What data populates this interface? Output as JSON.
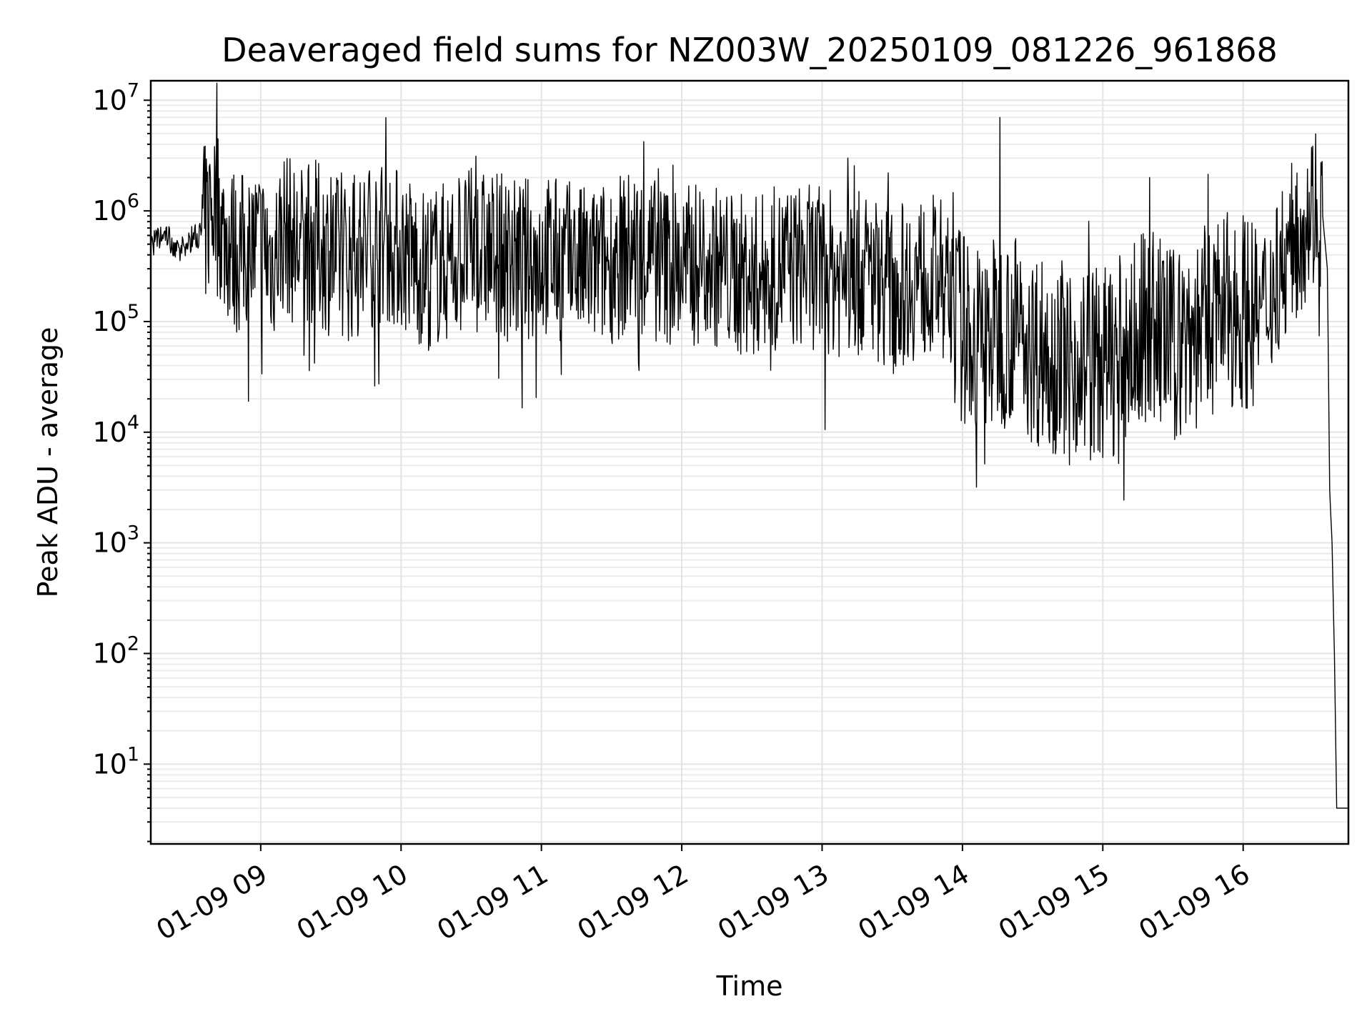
{
  "chart_data": {
    "type": "line",
    "title": "Deaveraged field sums for NZ003W_20250109_081226_961868",
    "xlabel": "Time",
    "ylabel": "Peak ADU - average",
    "yscale": "log",
    "grid": "major and minor",
    "xlim": [
      "2025-01-09 08:13",
      "2025-01-09 16:45"
    ],
    "ylim": [
      1.9,
      15000000
    ],
    "x_ticks": [
      "01-09 09",
      "01-09 10",
      "01-09 11",
      "01-09 12",
      "01-09 13",
      "01-09 14",
      "01-09 15",
      "01-09 16"
    ],
    "y_ticks": [
      {
        "base": "10",
        "exp": "1"
      },
      {
        "base": "10",
        "exp": "2"
      },
      {
        "base": "10",
        "exp": "3"
      },
      {
        "base": "10",
        "exp": "4"
      },
      {
        "base": "10",
        "exp": "5"
      },
      {
        "base": "10",
        "exp": "6"
      },
      {
        "base": "10",
        "exp": "7"
      }
    ],
    "series": [
      {
        "color": "#000000",
        "x": [
          "2025-01-09 08:13",
          "2025-01-09 08:20",
          "2025-01-09 08:25",
          "2025-01-09 08:30",
          "2025-01-09 08:35",
          "2025-01-09 08:38",
          "2025-01-09 08:41",
          "2025-01-09 08:44",
          "2025-01-09 08:47",
          "2025-01-09 08:50",
          "2025-01-09 08:55",
          "2025-01-09 09:00",
          "2025-01-09 09:05",
          "2025-01-09 09:10",
          "2025-01-09 09:15",
          "2025-01-09 09:20",
          "2025-01-09 09:25",
          "2025-01-09 09:30",
          "2025-01-09 09:40",
          "2025-01-09 09:50",
          "2025-01-09 10:00",
          "2025-01-09 10:10",
          "2025-01-09 10:20",
          "2025-01-09 10:30",
          "2025-01-09 10:40",
          "2025-01-09 10:50",
          "2025-01-09 11:00",
          "2025-01-09 11:10",
          "2025-01-09 11:20",
          "2025-01-09 11:30",
          "2025-01-09 11:40",
          "2025-01-09 11:50",
          "2025-01-09 12:00",
          "2025-01-09 12:10",
          "2025-01-09 12:20",
          "2025-01-09 12:30",
          "2025-01-09 12:40",
          "2025-01-09 12:50",
          "2025-01-09 13:00",
          "2025-01-09 13:10",
          "2025-01-09 13:20",
          "2025-01-09 13:30",
          "2025-01-09 13:40",
          "2025-01-09 13:50",
          "2025-01-09 14:00",
          "2025-01-09 14:05",
          "2025-01-09 14:10",
          "2025-01-09 14:15",
          "2025-01-09 14:20",
          "2025-01-09 14:30",
          "2025-01-09 14:40",
          "2025-01-09 14:50",
          "2025-01-09 15:00",
          "2025-01-09 15:10",
          "2025-01-09 15:20",
          "2025-01-09 15:30",
          "2025-01-09 15:40",
          "2025-01-09 15:50",
          "2025-01-09 16:00",
          "2025-01-09 16:08",
          "2025-01-09 16:15",
          "2025-01-09 16:20",
          "2025-01-09 16:25",
          "2025-01-09 16:28",
          "2025-01-09 16:31",
          "2025-01-09 16:34",
          "2025-01-09 16:36",
          "2025-01-09 16:37",
          "2025-01-09 16:38",
          "2025-01-09 16:39",
          "2025-01-09 16:40",
          "2025-01-09 16:45"
        ],
        "y": [
          500000,
          600000,
          400000,
          550000,
          650000,
          900000,
          1400000,
          600000,
          500000,
          400000,
          450000,
          500000,
          350000,
          700000,
          450000,
          550000,
          500000,
          400000,
          350000,
          550000,
          450000,
          300000,
          350000,
          450000,
          400000,
          350000,
          400000,
          350000,
          300000,
          350000,
          450000,
          350000,
          300000,
          350000,
          280000,
          250000,
          300000,
          320000,
          300000,
          250000,
          280000,
          200000,
          250000,
          250000,
          90000,
          65000,
          70000,
          80000,
          90000,
          60000,
          50000,
          45000,
          40000,
          55000,
          100000,
          60000,
          80000,
          120000,
          130000,
          120000,
          300000,
          450000,
          700000,
          1000000,
          1200000,
          900000,
          300000,
          3000,
          1000,
          100,
          4,
          4
        ],
        "spikes": [
          {
            "x": "2025-01-09 08:38",
            "y": 2500000
          },
          {
            "x": "2025-01-09 08:41",
            "y": 2800000
          },
          {
            "x": "2025-01-09 09:30",
            "y": 2000000
          },
          {
            "x": "2025-01-09 09:40",
            "y": 2100000
          },
          {
            "x": "2025-01-09 13:11",
            "y": 3000000
          },
          {
            "x": "2025-01-09 14:16",
            "y": 7000000
          },
          {
            "x": "2025-01-09 15:20",
            "y": 2000000
          },
          {
            "x": "2025-01-09 16:23",
            "y": 2200000
          }
        ],
        "dips": [
          {
            "x": "2025-01-09 09:23",
            "y": 42000
          },
          {
            "x": "2025-01-09 14:55",
            "y": 28000
          }
        ]
      }
    ]
  }
}
